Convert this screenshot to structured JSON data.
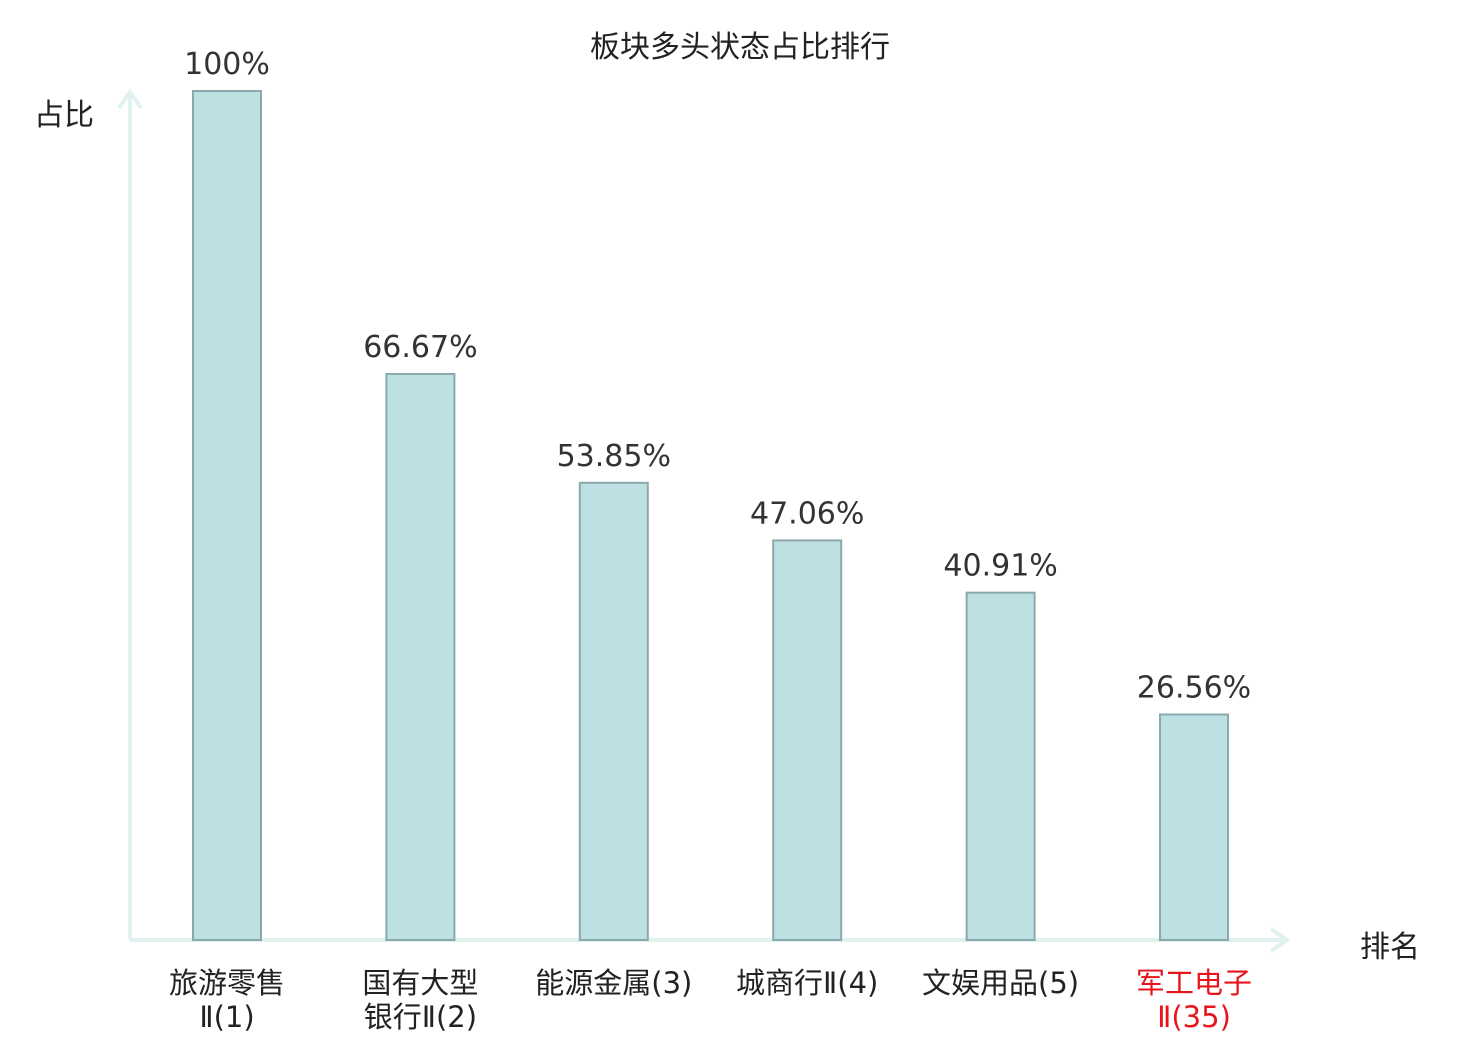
{
  "chart_data": {
    "type": "bar",
    "title": "板块多头状态占比排行",
    "ylabel": "占比",
    "xlabel": "排名",
    "ylim": [
      0,
      100
    ],
    "grid": false,
    "categories": [
      [
        "旅游零售",
        "Ⅱ(1)"
      ],
      [
        "国有大型",
        "银行Ⅱ(2)"
      ],
      [
        "能源金属(3)"
      ],
      [
        "城商行Ⅱ(4)"
      ],
      [
        "文娱用品(5)"
      ],
      [
        "军工电子",
        "Ⅱ(35)"
      ]
    ],
    "values": [
      100,
      66.67,
      53.85,
      47.06,
      40.91,
      26.56
    ],
    "value_labels": [
      "100%",
      "66.67%",
      "53.85%",
      "47.06%",
      "40.91%",
      "26.56%"
    ],
    "highlight_index": 5,
    "colors": {
      "bar_fill": "#bde0e2",
      "bar_stroke": "#8aa9ad",
      "axis": "#e0f2f0",
      "highlight_text": "#e8141c",
      "text": "#333333"
    }
  }
}
